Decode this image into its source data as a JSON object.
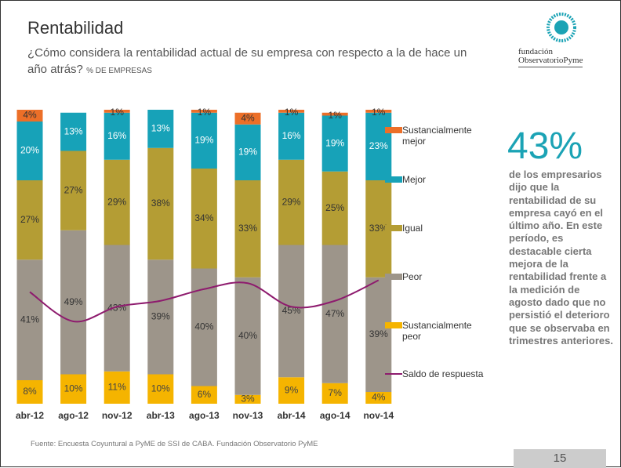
{
  "header": {
    "title": "Rentabilidad",
    "subtitle": "¿Cómo considera la rentabilidad actual de su empresa con respecto a la de hace un año atrás?",
    "unit": "% DE EMPRESAS",
    "logo_line1": "fundación",
    "logo_line2": "ObservatorioPyme"
  },
  "chart_data": {
    "type": "bar",
    "stacked": true,
    "ylim": [
      0,
      100
    ],
    "categories": [
      "abr-12",
      "ago-12",
      "nov-12",
      "abr-13",
      "ago-13",
      "nov-13",
      "abr-14",
      "ago-14",
      "nov-14"
    ],
    "series": [
      {
        "name": "Sustancialmente peor",
        "color": "#f5b400",
        "label_color": "#444",
        "values": [
          8,
          10,
          11,
          10,
          6,
          3,
          9,
          7,
          4
        ],
        "value_labels": [
          "8%",
          "10%",
          "11%",
          "10%",
          "6%",
          "3%",
          "9%",
          "7%",
          "4%"
        ]
      },
      {
        "name": "Peor",
        "color": "#9d958a",
        "label_color": "#333",
        "values": [
          41,
          49,
          43,
          39,
          40,
          40,
          45,
          47,
          39
        ],
        "value_labels": [
          "41%",
          "49%",
          "43%",
          "39%",
          "40%",
          "40%",
          "45%",
          "47%",
          "39%"
        ]
      },
      {
        "name": "Igual",
        "color": "#b49d34",
        "label_color": "#333",
        "values": [
          27,
          27,
          29,
          38,
          34,
          33,
          29,
          25,
          33
        ],
        "value_labels": [
          "27%",
          "27%",
          "29%",
          "38%",
          "34%",
          "33%",
          "29%",
          "25%",
          "33%"
        ]
      },
      {
        "name": "Mejor",
        "color": "#17a2b8",
        "label_color": "#ffffff",
        "values": [
          20,
          13,
          16,
          13,
          19,
          19,
          16,
          19,
          23
        ],
        "value_labels": [
          "20%",
          "13%",
          "16%",
          "13%",
          "19%",
          "19%",
          "16%",
          "19%",
          "23%"
        ]
      },
      {
        "name": "Sustancialmente mejor",
        "color": "#ec6f28",
        "label_color": "#333",
        "values": [
          4,
          null,
          1,
          null,
          1,
          4,
          1,
          1,
          1
        ],
        "value_labels": [
          "4%",
          null,
          "1%",
          null,
          "1%",
          "4%",
          "1%",
          "1%",
          "1%"
        ]
      },
      {
        "name": "Saldo de respuesta",
        "type": "line",
        "color": "#8e1b6e",
        "values": [
          38,
          28,
          33,
          35,
          39,
          41,
          33,
          35,
          42
        ]
      }
    ]
  },
  "sidebar": {
    "highlight": "43%",
    "text": "de los empresarios dijo que la rentabilidad de su empresa cayó en el último año. En este período, es destacable cierta mejora de la rentabilidad frente a la medición de agosto dado que no persistió el deterioro que se observaba en trimestres anteriores."
  },
  "footer": {
    "source": "Fuente: Encuesta Coyuntural a PyME de SSI de CABA. Fundación Observatorio PyME",
    "page": "15"
  }
}
